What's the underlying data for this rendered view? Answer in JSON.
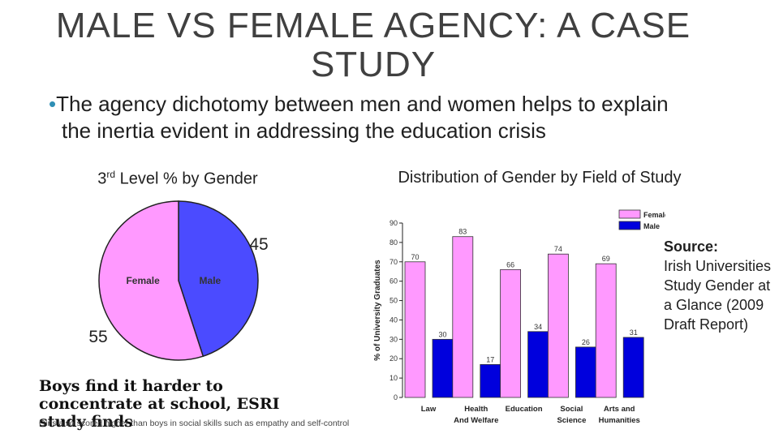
{
  "slide": {
    "title": "MALE VS FEMALE AGENCY: A CASE STUDY",
    "bullet_dot": "•",
    "bullet": "The agency dichotomy between men and women helps to explain the inertia evident in addressing the education crisis",
    "colors": {
      "female": "#ff99ff",
      "male": "#4b4bff",
      "bar_male": "#0000dd",
      "bar_female": "#ff99ff",
      "title": "#404040",
      "bullet": "#2e8fb5"
    }
  },
  "pie_panel": {
    "title_pre": "3",
    "title_sup": "rd",
    "title_post": " Level % by Gender",
    "headline": "Boys find it harder to concentrate at school, ESRI study finds",
    "subline": "Girls also scored higher than boys in social skills such as empathy and self-control"
  },
  "bar_panel": {
    "title": "Distribution of Gender by Field of Study"
  },
  "source": {
    "label": "Source:",
    "text": "Irish Universities Study Gender at a Glance (2009 Draft Report)"
  },
  "chart_data": [
    {
      "type": "pie",
      "title": "3rd Level % by Gender",
      "categories": [
        "Male",
        "Female"
      ],
      "values": [
        45,
        55
      ],
      "slice_labels": [
        "Male",
        "Female"
      ],
      "value_labels": [
        "45",
        "55"
      ]
    },
    {
      "type": "bar",
      "title": "Distribution of Gender by Field of Study",
      "categories": [
        "Law",
        "Health And Welfare",
        "Education",
        "Social Science",
        "Arts and Humanities"
      ],
      "series": [
        {
          "name": "Female",
          "values": [
            70,
            83,
            66,
            74,
            69
          ]
        },
        {
          "name": "Male",
          "values": [
            30,
            17,
            34,
            26,
            31
          ]
        }
      ],
      "ylabel": "% of University Graduates",
      "xlabel": "",
      "ylim": [
        0,
        90
      ],
      "yticks": [
        0,
        10,
        20,
        30,
        40,
        50,
        60,
        70,
        80,
        90
      ],
      "legend": [
        "Female",
        "Male"
      ],
      "legend_position": "top-right"
    }
  ]
}
